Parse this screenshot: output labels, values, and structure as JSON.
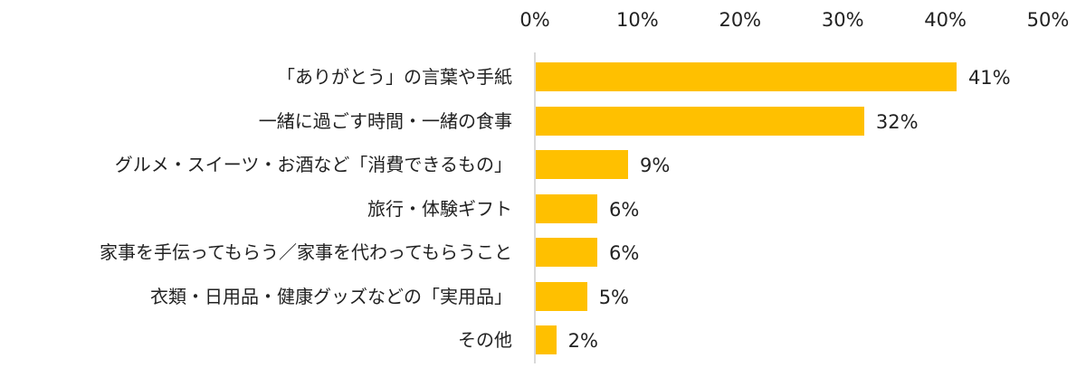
{
  "chart_data": {
    "type": "bar",
    "orientation": "horizontal",
    "title": "",
    "xlabel": "",
    "ylabel": "",
    "xlim": [
      0,
      50
    ],
    "x_ticks": [
      "0%",
      "10%",
      "20%",
      "30%",
      "40%",
      "50%"
    ],
    "x_tick_values": [
      0,
      10,
      20,
      30,
      40,
      50
    ],
    "x_axis_position": "top",
    "grid": false,
    "legend": null,
    "categories": [
      "「ありがとう」の言葉や手紙",
      "一緒に過ごす時間・一緒の食事",
      "グルメ・スイーツ・お酒など「消費できるもの」",
      "旅行・体験ギフト",
      "家事を手伝ってもらう／家事を代わってもらうこと",
      "衣類・日用品・健康グッズなどの「実用品」",
      "その他"
    ],
    "values": [
      41,
      32,
      9,
      6,
      6,
      5,
      2
    ],
    "value_labels": [
      "41%",
      "32%",
      "9%",
      "6%",
      "6%",
      "5%",
      "2%"
    ],
    "unit": "%",
    "bar_color": "#ffc000",
    "axis_line_color": "#d9d9d9",
    "text_color": "#222222"
  }
}
